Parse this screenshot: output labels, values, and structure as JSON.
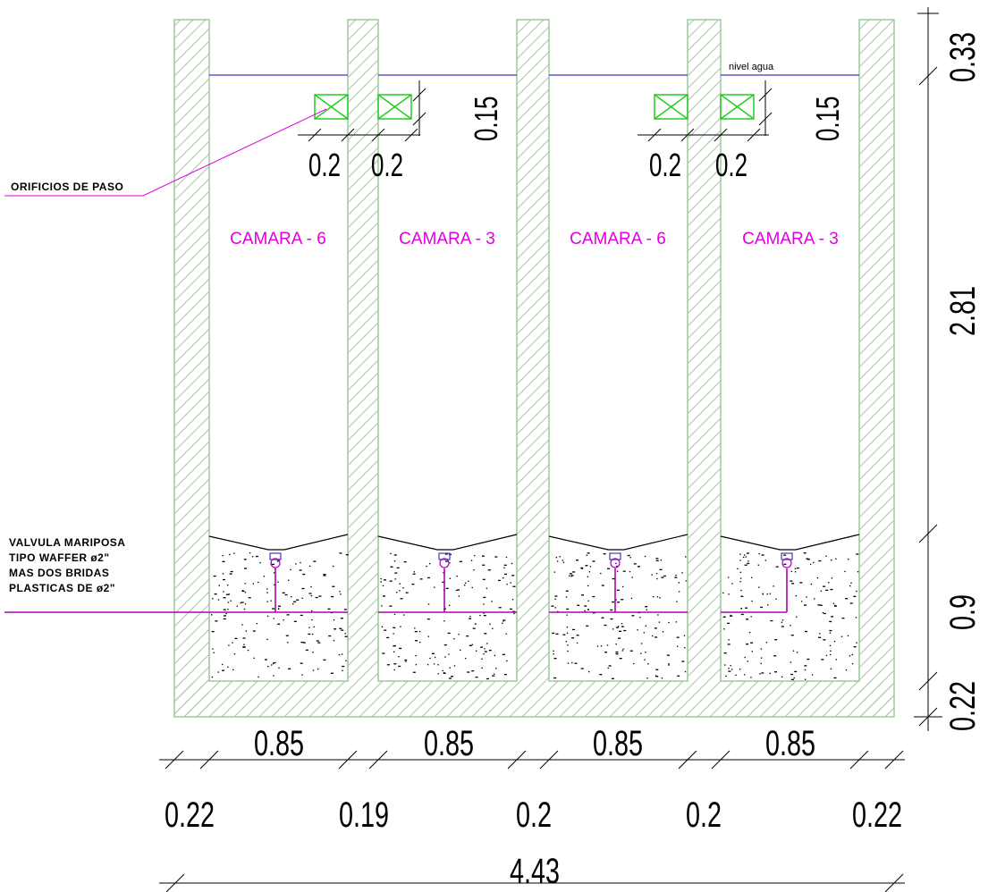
{
  "labels": {
    "water_level": "nivel agua",
    "orifices_note": "ORIFICIOS DE PASO",
    "valve_note": [
      "VALVULA MARIPOSA",
      "TIPO WAFFER ø2\"",
      "MAS DOS BRIDAS",
      "PLASTICAS DE ø2\""
    ]
  },
  "chambers": [
    "CAMARA - 6",
    "CAMARA - 3",
    "CAMARA - 6",
    "CAMARA - 3"
  ],
  "dimensions": {
    "orifice_height": [
      "0.15",
      "0.15"
    ],
    "orifice_widths": [
      "0.2",
      "0.2",
      "0.2",
      "0.2"
    ],
    "right_vertical": [
      "0.33",
      "2.81",
      "0.9",
      "0.22"
    ],
    "chamber_widths": [
      "0.85",
      "0.85",
      "0.85",
      "0.85"
    ],
    "wall_widths": [
      "0.22",
      "0.19",
      "0.2",
      "0.2",
      "0.22"
    ],
    "total_width": "4.43"
  },
  "colors": {
    "wall_outline": "#9ccc9c",
    "chamber_label": "#e000e0",
    "water_line": "#3b3bc8",
    "orifice": "#22cc22",
    "pipe": "#b000b0"
  }
}
